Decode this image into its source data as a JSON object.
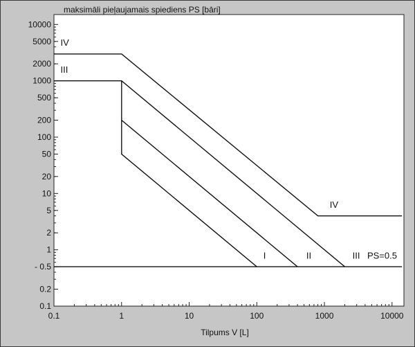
{
  "chart_data": {
    "type": "line",
    "title": "maksimāli pieļaujamais spiediens PS [bāri]",
    "xlabel": "Tilpums V [L]",
    "ylabel": "",
    "x_scale": "log",
    "y_scale": "log",
    "xlim": [
      0.1,
      15000
    ],
    "ylim": [
      0.1,
      15000
    ],
    "x_ticks": [
      0.1,
      1,
      10,
      100,
      1000,
      10000
    ],
    "x_tick_labels": [
      "0.1",
      "1",
      "10",
      "100",
      "1000",
      "10000"
    ],
    "y_ticks": [
      0.1,
      0.2,
      0.5,
      1,
      2,
      5,
      10,
      20,
      50,
      100,
      200,
      500,
      1000,
      2000,
      5000,
      10000
    ],
    "y_tick_labels": [
      "0.1",
      "0.2",
      "- 0.5",
      "1",
      "2",
      "5",
      "10",
      "20",
      "50",
      "100",
      "200",
      "500",
      "1000",
      "2000",
      "5000",
      "10000"
    ],
    "grid": false,
    "series": [
      {
        "name": "IV",
        "x": [
          0.1,
          1,
          800,
          14000
        ],
        "y": [
          3000,
          3000,
          4,
          4
        ]
      },
      {
        "name": "III",
        "x": [
          0.1,
          1,
          2000
        ],
        "y": [
          1000,
          1000,
          0.5
        ]
      },
      {
        "name": "II",
        "x": [
          1,
          1,
          400
        ],
        "y": [
          1000,
          200,
          0.5
        ]
      },
      {
        "name": "I",
        "x": [
          1,
          1,
          100
        ],
        "y": [
          200,
          50,
          0.5
        ]
      },
      {
        "name": "PS=0.5",
        "x": [
          0.1,
          14000
        ],
        "y": [
          0.5,
          0.5
        ]
      }
    ],
    "annotations": [
      {
        "text": "IV",
        "x": 0.125,
        "y": 4200
      },
      {
        "text": "III",
        "x": 0.125,
        "y": 1400
      },
      {
        "text": "I",
        "x": 125,
        "y": 0.7
      },
      {
        "text": "II",
        "x": 540,
        "y": 0.7
      },
      {
        "text": "III",
        "x": 2600,
        "y": 0.7
      },
      {
        "text": "IV",
        "x": 1200,
        "y": 5.6
      },
      {
        "text": "PS=0.5",
        "x": 4300,
        "y": 0.7
      }
    ]
  }
}
